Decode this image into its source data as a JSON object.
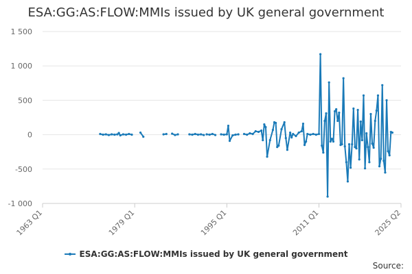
{
  "chart_data": {
    "type": "line",
    "title": "ESA:GG:AS:FLOW:MMIs issued by UK general government",
    "xlabel": "",
    "ylabel": "",
    "ylim": [
      -1000,
      1500
    ],
    "yticks": [
      -1000,
      -500,
      0,
      500,
      1000,
      1500
    ],
    "ytick_labels": [
      "-1 000",
      "-500",
      "0",
      "500",
      "1 000",
      "1 500"
    ],
    "xlim": [
      "1963 Q1",
      "2025 Q2"
    ],
    "xticks": [
      "1963 Q1",
      "1979 Q1",
      "1995 Q1",
      "2011 Q1",
      "2025 Q2"
    ],
    "grid": true,
    "legend_position": "bottom",
    "series": [
      {
        "name": "ESA:GG:AS:FLOW:MMIs issued by UK general government",
        "color": "#1a7ab8",
        "segments": [
          [
            [
              "1973 Q1",
              10
            ],
            [
              "1973 Q3",
              0
            ],
            [
              "1974 Q1",
              5
            ],
            [
              "1974 Q3",
              -5
            ],
            [
              "1975 Q1",
              5
            ],
            [
              "1975 Q3",
              0
            ],
            [
              "1976 Q1",
              5
            ],
            [
              "1976 Q2",
              25
            ],
            [
              "1976 Q3",
              -10
            ],
            [
              "1977 Q1",
              5
            ],
            [
              "1977 Q3",
              0
            ],
            [
              "1978 Q1",
              10
            ],
            [
              "1978 Q3",
              0
            ]
          ],
          [
            [
              "1980 Q1",
              30
            ],
            [
              "1980 Q3",
              -30
            ]
          ],
          [
            [
              "1984 Q1",
              5
            ],
            [
              "1984 Q3",
              10
            ]
          ],
          [
            [
              "1985 Q3",
              15
            ],
            [
              "1986 Q1",
              -5
            ],
            [
              "1986 Q3",
              5
            ]
          ],
          [
            [
              "1988 Q3",
              5
            ],
            [
              "1989 Q1",
              0
            ],
            [
              "1989 Q3",
              10
            ],
            [
              "1990 Q1",
              0
            ],
            [
              "1990 Q3",
              5
            ],
            [
              "1991 Q1",
              -5
            ]
          ],
          [
            [
              "1991 Q3",
              5
            ],
            [
              "1992 Q1",
              0
            ],
            [
              "1992 Q3",
              10
            ],
            [
              "1993 Q1",
              -5
            ]
          ],
          [
            [
              "1994 Q1",
              5
            ],
            [
              "1994 Q3",
              0
            ],
            [
              "1995 Q1",
              5
            ],
            [
              "1995 Q2",
              130
            ],
            [
              "1995 Q3",
              -90
            ],
            [
              "1996 Q1",
              -10
            ],
            [
              "1996 Q3",
              0
            ],
            [
              "1997 Q1",
              5
            ]
          ],
          [
            [
              "1998 Q1",
              10
            ],
            [
              "1998 Q3",
              0
            ],
            [
              "1999 Q1",
              20
            ],
            [
              "1999 Q3",
              10
            ],
            [
              "2000 Q1",
              50
            ],
            [
              "2000 Q3",
              40
            ],
            [
              "2001 Q1",
              60
            ],
            [
              "2001 Q2",
              -80
            ],
            [
              "2001 Q3",
              150
            ],
            [
              "2001 Q4",
              110
            ],
            [
              "2002 Q1",
              -320
            ],
            [
              "2002 Q3",
              -80
            ],
            [
              "2003 Q1",
              70
            ],
            [
              "2003 Q2",
              180
            ],
            [
              "2003 Q3",
              170
            ],
            [
              "2003 Q4",
              -180
            ],
            [
              "2004 Q1",
              -160
            ],
            [
              "2004 Q3",
              80
            ],
            [
              "2005 Q1",
              180
            ],
            [
              "2005 Q2",
              -50
            ],
            [
              "2005 Q3",
              -220
            ],
            [
              "2006 Q1",
              30
            ],
            [
              "2006 Q2",
              -40
            ],
            [
              "2006 Q3",
              10
            ],
            [
              "2007 Q1",
              -20
            ],
            [
              "2007 Q3",
              30
            ],
            [
              "2008 Q1",
              50
            ],
            [
              "2008 Q2",
              160
            ],
            [
              "2008 Q3",
              -150
            ],
            [
              "2008 Q4",
              -100
            ],
            [
              "2009 Q1",
              10
            ],
            [
              "2009 Q3",
              0
            ],
            [
              "2010 Q1",
              10
            ],
            [
              "2010 Q3",
              0
            ],
            [
              "2011 Q1",
              10
            ],
            [
              "2011 Q2",
              1170
            ],
            [
              "2011 Q3",
              -160
            ],
            [
              "2011 Q4",
              -260
            ],
            [
              "2012 Q1",
              200
            ],
            [
              "2012 Q2",
              310
            ],
            [
              "2012 Q3",
              -900
            ],
            [
              "2012 Q4",
              760
            ],
            [
              "2013 Q1",
              -100
            ],
            [
              "2013 Q2",
              -60
            ],
            [
              "2013 Q3",
              -100
            ],
            [
              "2013 Q4",
              340
            ],
            [
              "2014 Q1",
              370
            ],
            [
              "2014 Q2",
              200
            ],
            [
              "2014 Q3",
              320
            ],
            [
              "2014 Q4",
              -150
            ],
            [
              "2015 Q1",
              -140
            ],
            [
              "2015 Q2",
              820
            ],
            [
              "2015 Q3",
              -170
            ],
            [
              "2015 Q4",
              -400
            ],
            [
              "2016 Q1",
              -680
            ],
            [
              "2016 Q2",
              -140
            ],
            [
              "2016 Q3",
              -480
            ],
            [
              "2016 Q4",
              -140
            ],
            [
              "2017 Q1",
              380
            ],
            [
              "2017 Q2",
              -180
            ],
            [
              "2017 Q3",
              -200
            ],
            [
              "2017 Q4",
              360
            ],
            [
              "2018 Q1",
              -360
            ],
            [
              "2018 Q2",
              190
            ],
            [
              "2018 Q3",
              -80
            ],
            [
              "2018 Q4",
              570
            ],
            [
              "2019 Q1",
              -490
            ],
            [
              "2019 Q2",
              20
            ],
            [
              "2019 Q3",
              -180
            ],
            [
              "2019 Q4",
              -400
            ],
            [
              "2020 Q1",
              300
            ],
            [
              "2020 Q2",
              -130
            ],
            [
              "2020 Q3",
              -190
            ],
            [
              "2020 Q4",
              200
            ],
            [
              "2021 Q1",
              350
            ],
            [
              "2021 Q2",
              570
            ],
            [
              "2021 Q3",
              -460
            ],
            [
              "2021 Q4",
              -350
            ],
            [
              "2022 Q1",
              720
            ],
            [
              "2022 Q2",
              -380
            ],
            [
              "2022 Q3",
              -550
            ],
            [
              "2022 Q4",
              500
            ],
            [
              "2023 Q1",
              -240
            ],
            [
              "2023 Q2",
              -300
            ],
            [
              "2023 Q3",
              40
            ],
            [
              "2023 Q4",
              30
            ]
          ]
        ]
      }
    ]
  },
  "source_label": "Source:"
}
